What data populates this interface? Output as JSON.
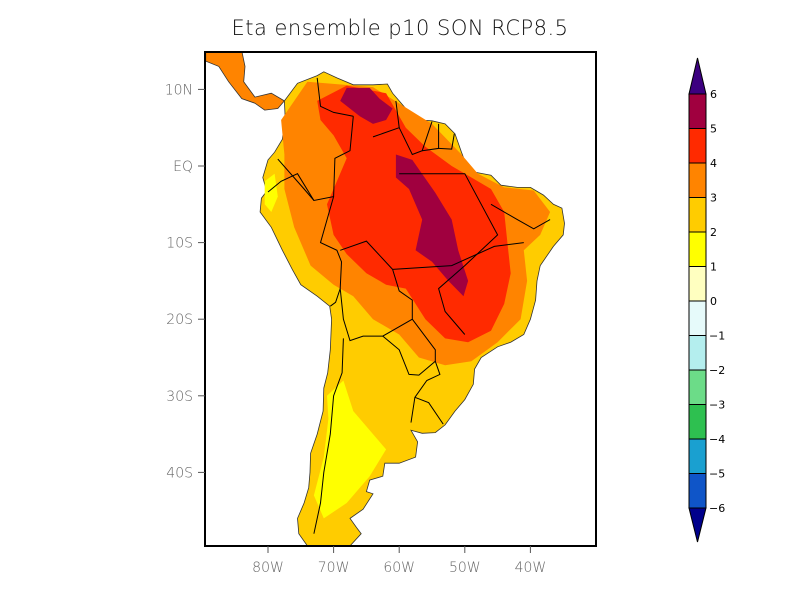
{
  "title": "Eta ensemble p10 SON RCP8.5",
  "map": {
    "lat_labels": [
      "10N",
      "EQ",
      "10S",
      "20S",
      "30S",
      "40S"
    ],
    "lat_values": [
      10,
      0,
      -10,
      -20,
      -30,
      -40
    ],
    "lon_labels": [
      "80W",
      "70W",
      "60W",
      "50W",
      "40W"
    ],
    "lon_values": [
      -80,
      -70,
      -60,
      -50,
      -40
    ],
    "lat_range": [
      15,
      -49.5
    ],
    "lon_range": [
      -89.5,
      -30
    ],
    "ocean_color": "#ffffff",
    "border_color": "#000000"
  },
  "colorbar": {
    "levels": [
      "6",
      "5",
      "4",
      "3",
      "2",
      "1",
      "0",
      "-1",
      "-2",
      "-3",
      "-4",
      "-5",
      "-6"
    ],
    "colors_top_to_bottom": [
      "#a0003f",
      "#ff2a00",
      "#ff8400",
      "#ffcc00",
      "#ffff00",
      "#ffffc0",
      "#e6fafa",
      "#b4eeee",
      "#6cdc88",
      "#2ec050",
      "#1aa0d0",
      "#0f55c8"
    ],
    "over_color": "#3c0080",
    "under_color": "#00008c"
  }
}
